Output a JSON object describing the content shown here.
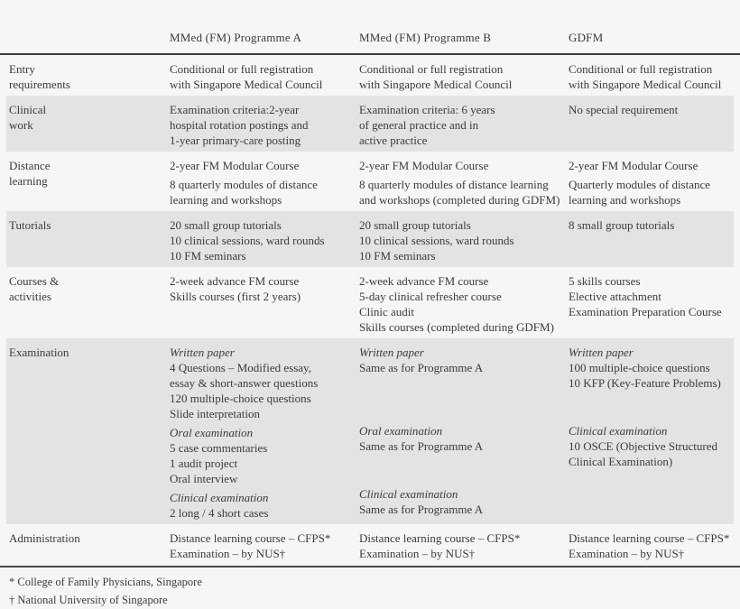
{
  "colors": {
    "background": "#f6f6f6",
    "row_shade": "#e3e3e3",
    "text": "#3b3b3b",
    "rule": "#3f3f3f"
  },
  "table": {
    "column_headers": [
      "MMed (FM) Programme A",
      "MMed (FM) Programme B",
      "GDFM"
    ],
    "rows": [
      {
        "label": [
          {
            "lines": [
              "Entry",
              "requirements"
            ]
          }
        ],
        "cells": [
          [
            {
              "lines": [
                "Conditional or full registration",
                "with Singapore Medical Council"
              ]
            }
          ],
          [
            {
              "lines": [
                "Conditional or full registration",
                "with Singapore Medical Council"
              ]
            }
          ],
          [
            {
              "lines": [
                "Conditional or full registration",
                "with Singapore Medical Council"
              ]
            }
          ]
        ]
      },
      {
        "label": [
          {
            "lines": [
              "Clinical",
              "work"
            ]
          }
        ],
        "cells": [
          [
            {
              "lines": [
                "Examination criteria:2-year",
                "hospital rotation postings and",
                "1-year primary-care posting"
              ]
            }
          ],
          [
            {
              "lines": [
                "Examination criteria: 6 years",
                "of general practice and in",
                "active practice"
              ]
            }
          ],
          [
            {
              "lines": [
                "No special requirement"
              ]
            }
          ]
        ]
      },
      {
        "label": [
          {
            "lines": [
              "Distance",
              "learning"
            ]
          }
        ],
        "cells": [
          [
            {
              "lines": [
                "2-year FM Modular Course"
              ]
            },
            {
              "lines": [
                "8 quarterly modules of distance",
                "learning and workshops"
              ]
            }
          ],
          [
            {
              "lines": [
                "2-year FM Modular Course"
              ]
            },
            {
              "lines": [
                "8 quarterly modules of distance learning",
                "and workshops (completed during GDFM)"
              ]
            }
          ],
          [
            {
              "lines": [
                "2-year FM Modular Course"
              ]
            },
            {
              "lines": [
                "Quarterly modules of distance",
                "learning and workshops"
              ]
            }
          ]
        ]
      },
      {
        "label": [
          {
            "lines": [
              "Tutorials"
            ]
          }
        ],
        "cells": [
          [
            {
              "lines": [
                "20 small group tutorials",
                "10 clinical sessions, ward rounds",
                "10 FM seminars"
              ]
            }
          ],
          [
            {
              "lines": [
                "20 small group tutorials",
                "10 clinical sessions, ward rounds",
                "10 FM seminars"
              ]
            }
          ],
          [
            {
              "lines": [
                "8 small group tutorials"
              ]
            }
          ]
        ]
      },
      {
        "label": [
          {
            "lines": [
              "Courses &",
              "activities"
            ]
          }
        ],
        "cells": [
          [
            {
              "lines": [
                "2-week advance FM course",
                "Skills courses (first 2 years)"
              ]
            }
          ],
          [
            {
              "lines": [
                "2-week advance FM course",
                "5-day clinical refresher course",
                "Clinic audit",
                "Skills courses (completed during GDFM)"
              ]
            }
          ],
          [
            {
              "lines": [
                "5 skills courses",
                "Elective attachment",
                "Examination Preparation Course"
              ]
            }
          ]
        ]
      },
      {
        "label": [
          {
            "lines": [
              "Examination"
            ]
          }
        ],
        "cells": [
          [
            {
              "title": "Written paper",
              "lines": [
                "4 Questions – Modified essay,",
                "essay & short-answer questions",
                "120 multiple-choice questions",
                "Slide interpretation"
              ]
            },
            {
              "title": "Oral examination",
              "lines": [
                "5 case commentaries",
                "1 audit project",
                "Oral interview"
              ]
            },
            {
              "title": "Clinical examination",
              "lines": [
                "2 long / 4 short cases"
              ]
            }
          ],
          [
            {
              "title": "Written paper",
              "lines": [
                "Same as for Programme A"
              ]
            },
            {
              "title": "Oral examination",
              "lines": [
                "Same as for Programme A"
              ]
            },
            {
              "title": "Clinical examination",
              "lines": [
                "Same as for Programme A"
              ]
            }
          ],
          [
            {
              "title": "Written paper",
              "lines": [
                "100 multiple-choice questions",
                "10 KFP (Key-Feature Problems)"
              ]
            },
            {
              "title": "Clinical examination",
              "lines": [
                "10 OSCE (Objective Structured",
                "Clinical Examination)"
              ]
            }
          ]
        ]
      },
      {
        "label": [
          {
            "lines": [
              "Administration"
            ]
          }
        ],
        "cells": [
          [
            {
              "lines": [
                "Distance learning course – CFPS*",
                "Examination – by NUS†"
              ]
            }
          ],
          [
            {
              "lines": [
                "Distance learning course – CFPS*",
                "Examination – by NUS†"
              ]
            }
          ],
          [
            {
              "lines": [
                "Distance learning course – CFPS*",
                "Examination – by NUS†"
              ]
            }
          ]
        ]
      }
    ],
    "footnotes": [
      "* College of Family Physicians, Singapore",
      "† National University of Singapore"
    ]
  }
}
